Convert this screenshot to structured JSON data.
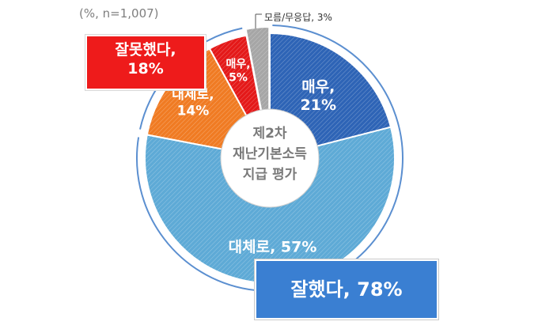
{
  "note": "(%, n=1,007)",
  "center_label": [
    "제2차",
    "재난기본소득",
    "지급 평가"
  ],
  "summary": {
    "negative": {
      "line1": "잘못했다,",
      "line2": "18%"
    },
    "positive": "잘했다, 78%"
  },
  "chart_data": {
    "type": "pie",
    "title": "",
    "slices": [
      {
        "label_line1": "매우,",
        "label_line2": "21%",
        "value": 21,
        "group": "잘했다",
        "color": "#2e64b6"
      },
      {
        "label_line1": "대체로, 57%",
        "label_line2": "",
        "value": 57,
        "group": "잘했다",
        "color": "#5eaad6"
      },
      {
        "label_line1": "대체로,",
        "label_line2": "14%",
        "value": 14,
        "group": "잘못했다",
        "color": "#f07b23"
      },
      {
        "label_line1": "매우,",
        "label_line2": "5%",
        "value": 5,
        "group": "잘못했다",
        "color": "#e41919"
      },
      {
        "label_line1": "모름/무응답, 3%",
        "label_line2": "",
        "value": 3,
        "group": "모름/무응답",
        "color": "#a6a6a6"
      }
    ],
    "start_angle": "12 o'clock",
    "direction": "clockwise",
    "inner_donut": true
  }
}
